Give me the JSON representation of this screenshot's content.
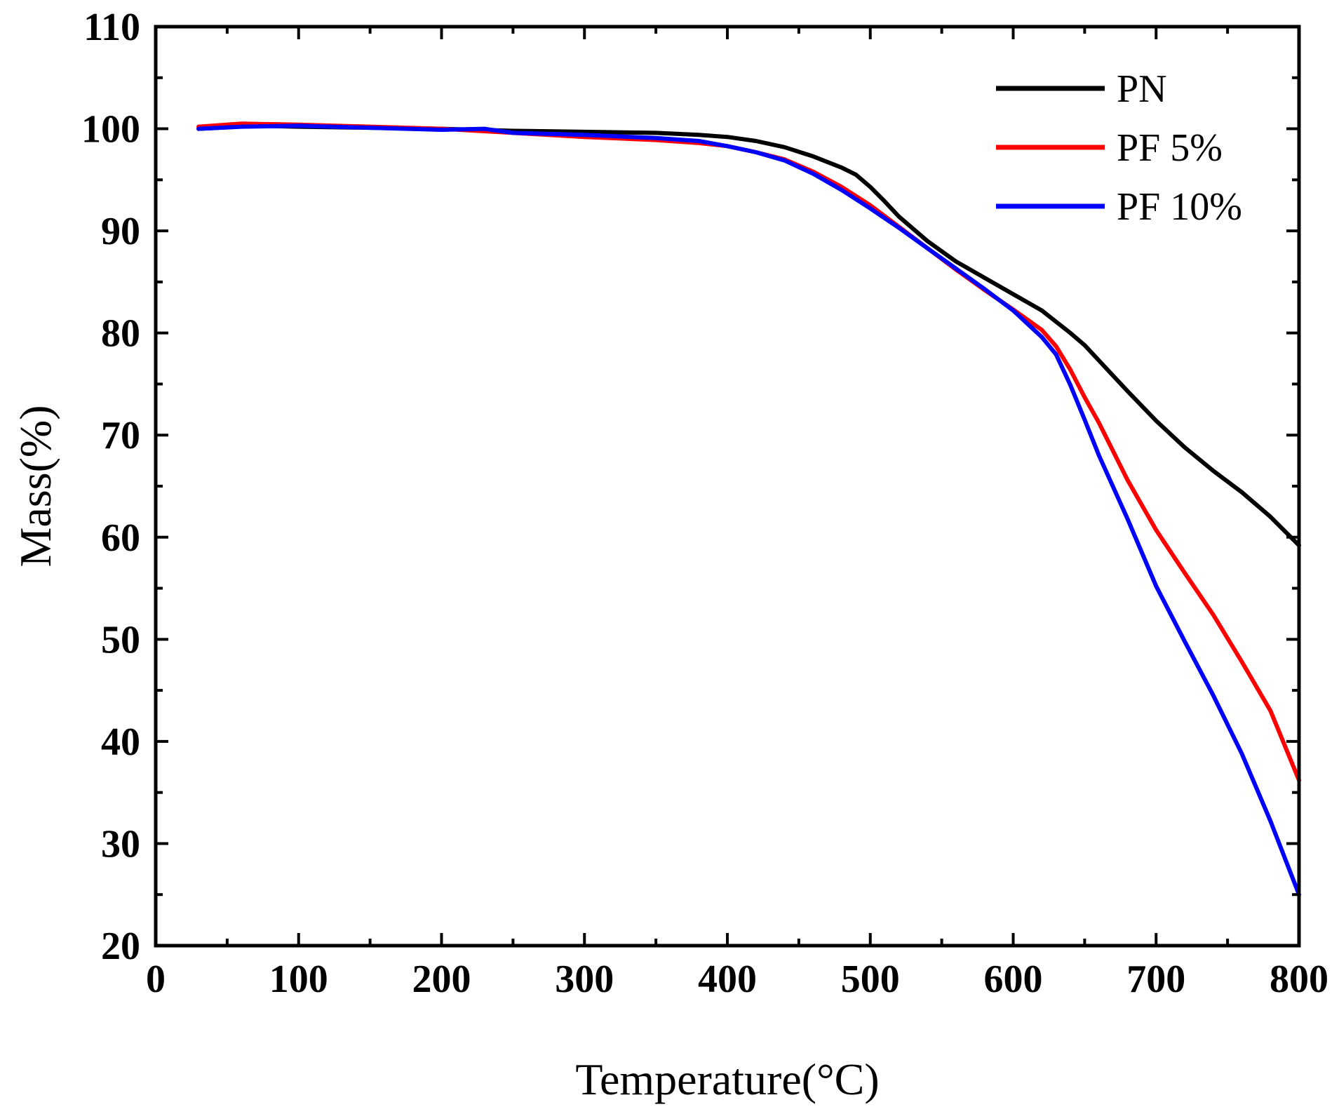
{
  "chart_data": {
    "type": "line",
    "title": "",
    "xlabel": "Temperature(°C)",
    "ylabel": "Mass(%)",
    "xlim": [
      0,
      800
    ],
    "ylim": [
      20,
      110
    ],
    "xticks": [
      0,
      100,
      200,
      300,
      400,
      500,
      600,
      700,
      800
    ],
    "yticks": [
      20,
      30,
      40,
      50,
      60,
      70,
      80,
      90,
      100,
      110
    ],
    "xtick_labels": [
      "0",
      "100",
      "200",
      "300",
      "400",
      "500",
      "600",
      "700",
      "800"
    ],
    "ytick_labels": [
      "20",
      "30",
      "40",
      "50",
      "60",
      "70",
      "80",
      "90",
      "100",
      "110"
    ],
    "grid": false,
    "legend_position": "top-right",
    "series": [
      {
        "name": "PN",
        "color": "#000000",
        "points": [
          [
            30,
            100.0
          ],
          [
            70,
            100.3
          ],
          [
            100,
            100.2
          ],
          [
            150,
            100.1
          ],
          [
            200,
            100.0
          ],
          [
            250,
            99.8
          ],
          [
            300,
            99.7
          ],
          [
            350,
            99.6
          ],
          [
            380,
            99.4
          ],
          [
            400,
            99.2
          ],
          [
            420,
            98.8
          ],
          [
            440,
            98.2
          ],
          [
            460,
            97.3
          ],
          [
            480,
            96.2
          ],
          [
            490,
            95.5
          ],
          [
            500,
            94.3
          ],
          [
            510,
            92.9
          ],
          [
            520,
            91.4
          ],
          [
            540,
            89.0
          ],
          [
            560,
            87.0
          ],
          [
            580,
            85.4
          ],
          [
            600,
            83.8
          ],
          [
            620,
            82.2
          ],
          [
            640,
            80.0
          ],
          [
            650,
            78.8
          ],
          [
            660,
            77.3
          ],
          [
            680,
            74.3
          ],
          [
            700,
            71.4
          ],
          [
            720,
            68.8
          ],
          [
            740,
            66.5
          ],
          [
            760,
            64.4
          ],
          [
            780,
            62.0
          ],
          [
            800,
            59.2
          ]
        ]
      },
      {
        "name": "PF 5%",
        "color": "#ff0000",
        "points": [
          [
            30,
            100.2
          ],
          [
            60,
            100.5
          ],
          [
            100,
            100.4
          ],
          [
            150,
            100.2
          ],
          [
            200,
            100.0
          ],
          [
            250,
            99.6
          ],
          [
            300,
            99.2
          ],
          [
            350,
            98.9
          ],
          [
            380,
            98.6
          ],
          [
            400,
            98.3
          ],
          [
            420,
            97.7
          ],
          [
            440,
            97.0
          ],
          [
            460,
            95.8
          ],
          [
            480,
            94.3
          ],
          [
            500,
            92.5
          ],
          [
            520,
            90.4
          ],
          [
            540,
            88.3
          ],
          [
            560,
            86.2
          ],
          [
            580,
            84.2
          ],
          [
            600,
            82.3
          ],
          [
            620,
            80.3
          ],
          [
            630,
            78.7
          ],
          [
            640,
            76.4
          ],
          [
            650,
            73.7
          ],
          [
            660,
            71.2
          ],
          [
            680,
            65.6
          ],
          [
            700,
            60.7
          ],
          [
            720,
            56.5
          ],
          [
            740,
            52.4
          ],
          [
            760,
            47.8
          ],
          [
            780,
            43.0
          ],
          [
            800,
            36.2
          ]
        ]
      },
      {
        "name": "PF 10%",
        "color": "#0000ff",
        "points": [
          [
            30,
            100.0
          ],
          [
            60,
            100.2
          ],
          [
            100,
            100.3
          ],
          [
            150,
            100.1
          ],
          [
            200,
            99.9
          ],
          [
            230,
            100.0
          ],
          [
            250,
            99.6
          ],
          [
            300,
            99.4
          ],
          [
            350,
            99.1
          ],
          [
            380,
            98.8
          ],
          [
            400,
            98.3
          ],
          [
            420,
            97.7
          ],
          [
            440,
            96.9
          ],
          [
            460,
            95.6
          ],
          [
            480,
            94.0
          ],
          [
            500,
            92.2
          ],
          [
            520,
            90.3
          ],
          [
            540,
            88.3
          ],
          [
            560,
            86.3
          ],
          [
            580,
            84.3
          ],
          [
            600,
            82.2
          ],
          [
            620,
            79.6
          ],
          [
            630,
            77.9
          ],
          [
            640,
            74.9
          ],
          [
            650,
            71.5
          ],
          [
            660,
            68.0
          ],
          [
            680,
            61.8
          ],
          [
            700,
            55.2
          ],
          [
            720,
            49.8
          ],
          [
            740,
            44.5
          ],
          [
            760,
            38.8
          ],
          [
            780,
            32.2
          ],
          [
            800,
            25.0
          ]
        ]
      }
    ]
  }
}
